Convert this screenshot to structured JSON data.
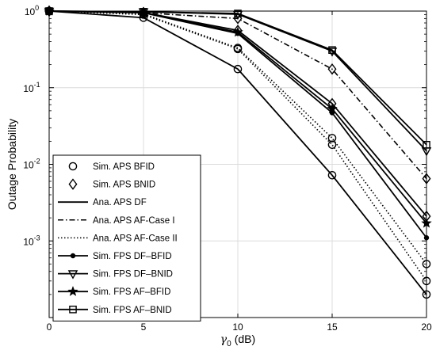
{
  "chart_data": {
    "type": "line",
    "xlabel": "γ",
    "xlabel_sub": "0",
    "xlabel_unit": "(dB)",
    "ylabel": "Outage Probability",
    "xlim": [
      0,
      20
    ],
    "ylim": [
      0.0001,
      1
    ],
    "yscale": "log",
    "xticks": [
      0,
      5,
      10,
      15,
      20
    ],
    "xtick_labels": [
      "0",
      "5",
      "10",
      "15",
      "20"
    ],
    "yticks": [
      0.001,
      0.01,
      0.1,
      1
    ],
    "ytick_labels": [
      {
        "base": "10",
        "exp": "-3"
      },
      {
        "base": "10",
        "exp": "-2"
      },
      {
        "base": "10",
        "exp": "-1"
      },
      {
        "base": "10",
        "exp": "0"
      }
    ],
    "grid": true,
    "legend_position": "bottom-left",
    "legend": [
      {
        "label": "Sim. APS BFID",
        "line": "none",
        "marker": "circle"
      },
      {
        "label": "Sim. APS BNID",
        "line": "none",
        "marker": "diamond"
      },
      {
        "label": "Ana. APS DF",
        "line": "solid",
        "marker": "none"
      },
      {
        "label": "Ana. APS AF-Case I",
        "line": "dashdot",
        "marker": "none"
      },
      {
        "label": "Ana. APS AF-Case II",
        "line": "dotted",
        "marker": "none"
      },
      {
        "label": "Sim. FPS DF–BFID",
        "line": "solid",
        "marker": "dot"
      },
      {
        "label": "Sim. FPS DF–BNID",
        "line": "solid",
        "marker": "triangle-down"
      },
      {
        "label": "Sim. FPS AF–BFID",
        "line": "solid",
        "marker": "star"
      },
      {
        "label": "Sim. FPS AF–BNID",
        "line": "solid",
        "marker": "square"
      }
    ],
    "series": [
      {
        "label": "APS DF BFID",
        "line": "solid",
        "marker": "circle",
        "x": [
          0,
          5,
          10,
          15,
          20
        ],
        "y": [
          1.0,
          0.82,
          0.175,
          0.0072,
          0.0002
        ]
      },
      {
        "label": "APS AF-Case II BFID",
        "line": "dotted",
        "marker": "circle",
        "x": [
          0,
          5,
          10,
          15,
          20
        ],
        "y": [
          1.0,
          0.9,
          0.32,
          0.018,
          0.0003
        ]
      },
      {
        "label": "APS AF-Case I BFID",
        "line": "dotted",
        "marker": "circle",
        "x": [
          0,
          5,
          10,
          15,
          20
        ],
        "y": [
          1.0,
          0.92,
          0.33,
          0.022,
          0.0005
        ]
      },
      {
        "label": "FPS DF-BFID",
        "line": "solid",
        "marker": "dot",
        "x": [
          0,
          5,
          10,
          15,
          20
        ],
        "y": [
          1.0,
          0.95,
          0.51,
          0.047,
          0.0011
        ]
      },
      {
        "label": "FPS AF-BFID",
        "line": "solid",
        "marker": "star",
        "x": [
          0,
          5,
          10,
          15,
          20
        ],
        "y": [
          1.0,
          0.96,
          0.53,
          0.053,
          0.0017
        ]
      },
      {
        "label": "APS BNID",
        "line": "solid",
        "marker": "diamond",
        "x": [
          0,
          5,
          10,
          15,
          20
        ],
        "y": [
          1.0,
          0.96,
          0.56,
          0.062,
          0.0021
        ]
      },
      {
        "label": "APS AF-Case I BNID",
        "line": "dashdot",
        "marker": "diamond",
        "x": [
          0,
          5,
          10,
          15,
          20
        ],
        "y": [
          1.0,
          0.95,
          0.8,
          0.175,
          0.0065
        ]
      },
      {
        "label": "FPS DF-BNID",
        "line": "solid",
        "marker": "triangle-down",
        "x": [
          0,
          5,
          10,
          15,
          20
        ],
        "y": [
          1.0,
          0.98,
          0.91,
          0.3,
          0.015
        ]
      },
      {
        "label": "FPS AF-BNID",
        "line": "solid",
        "marker": "square",
        "x": [
          0,
          5,
          10,
          15,
          20
        ],
        "y": [
          1.0,
          0.98,
          0.93,
          0.31,
          0.018
        ]
      }
    ]
  }
}
